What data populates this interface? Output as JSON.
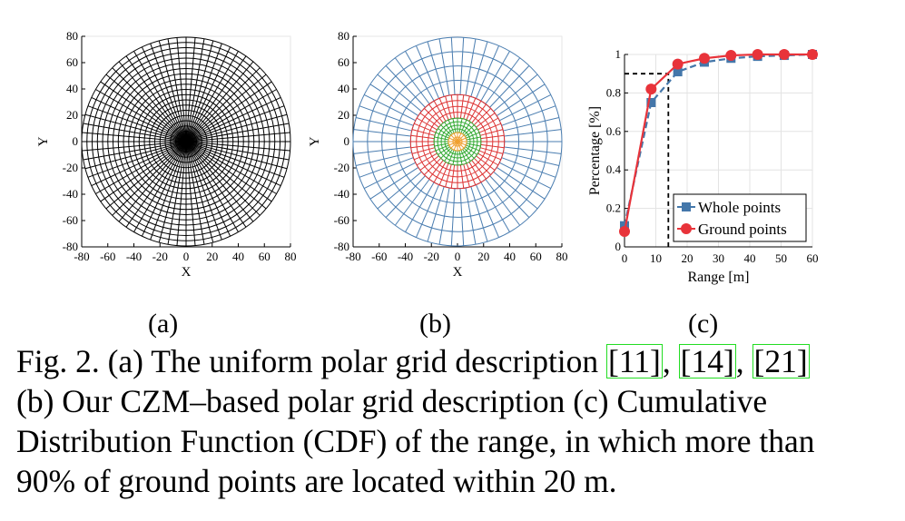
{
  "panels": {
    "a": {
      "label": "(a)",
      "xlabel": "X",
      "ylabel": "Y",
      "xticks": [
        "-80",
        "-60",
        "-40",
        "-20",
        "0",
        "20",
        "40",
        "60",
        "80"
      ],
      "yticks": [
        "80",
        "60",
        "40",
        "20",
        "0",
        "-20",
        "-40",
        "-60",
        "-80"
      ]
    },
    "b": {
      "label": "(b)",
      "xlabel": "X",
      "ylabel": "Y",
      "xticks": [
        "-80",
        "-60",
        "-40",
        "-20",
        "0",
        "20",
        "40",
        "60",
        "80"
      ],
      "yticks": [
        "80",
        "60",
        "40",
        "20",
        "0",
        "-20",
        "-40",
        "-60",
        "-80"
      ],
      "zone_colors": [
        "#f0a030",
        "#33aa33",
        "#dd3333",
        "#4a7db0"
      ]
    },
    "c": {
      "label": "(c)",
      "xlabel": "Range [m]",
      "ylabel": "Percentage [%]",
      "xticks": [
        "0",
        "10",
        "20",
        "30",
        "40",
        "50",
        "60"
      ],
      "yticks": [
        "0",
        "0.2",
        "0.4",
        "0.6",
        "0.8",
        "1"
      ]
    }
  },
  "chart_data": {
    "type": "line",
    "xlabel": "Range [m]",
    "ylabel": "Percentage [%]",
    "xlim": [
      0,
      60
    ],
    "ylim": [
      0,
      1
    ],
    "grid": true,
    "legend_position": "bottom-right",
    "reference_lines": {
      "x": 14,
      "y": 0.9
    },
    "series": [
      {
        "name": "Whole points",
        "color": "#4477aa",
        "marker": "square",
        "x": [
          0,
          8.5,
          17,
          25.5,
          34,
          42.5,
          51,
          60
        ],
        "y": [
          0.11,
          0.75,
          0.91,
          0.96,
          0.98,
          0.99,
          0.995,
          1.0
        ]
      },
      {
        "name": "Ground points",
        "color": "#e8333a",
        "marker": "circle",
        "x": [
          0,
          8.5,
          17,
          25.5,
          34,
          42.5,
          51,
          60
        ],
        "y": [
          0.08,
          0.82,
          0.95,
          0.98,
          0.995,
          1.0,
          1.0,
          1.0
        ]
      }
    ]
  },
  "caption": {
    "l1_a": "Fig. 2. (a) The uniform polar grid description ",
    "c11": "[11]",
    "l1_b": ", ",
    "c14": "[14]",
    "l1_c": ", ",
    "c21": "[21]",
    "l2": "(b) Our CZM–based polar grid description (c) Cumulative",
    "l3": "Distribution Function (CDF) of the range, in which more than",
    "l4": "90% of ground points are located within 20 m."
  }
}
